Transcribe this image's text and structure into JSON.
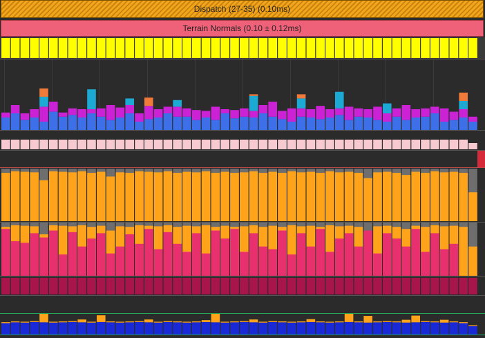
{
  "dispatch_label": "Dispatch (27-35) (0.10ms)",
  "terrain_label": "Terrain Normals (0.10 ± 0.12ms)",
  "colors": {
    "background": "#2b2b2b",
    "yellow": "#ffff00",
    "blue": "#3d6fe8",
    "magenta": "#cc22d6",
    "cyan": "#1ca9d4",
    "orange_top": "#f07a3a",
    "pink": "#f7c9d0",
    "red": "#d42a3a",
    "gold": "#ffa31a",
    "gray": "#6e6e6e",
    "rose": "#e8306f",
    "maroon": "#a8154a",
    "deep_blue": "#1a29d6",
    "green_line": "#1fa65a"
  },
  "frame_count": 50,
  "frames": {
    "stack_blue": [
      1.5,
      2.0,
      1.2,
      1.5,
      1.0,
      2.2,
      1.6,
      1.8,
      1.5,
      2.0,
      1.6,
      1.2,
      1.5,
      2.0,
      1.0,
      1.3,
      1.5,
      2.0,
      1.6,
      1.6,
      1.2,
      1.5,
      1.2,
      2.0,
      1.4,
      1.6,
      1.5,
      2.0,
      1.6,
      1.3,
      1.0,
      1.6,
      1.5,
      1.3,
      1.5,
      1.8,
      1.2,
      1.6,
      1.5,
      1.2,
      1.0,
      1.6,
      1.2,
      1.5,
      1.6,
      2.0,
      1.0,
      1.2,
      1.5,
      1.0
    ],
    "stack_magenta": [
      0.6,
      1.0,
      0.8,
      1.0,
      1.8,
      1.2,
      0.5,
      0.8,
      1.0,
      0.5,
      1.0,
      1.8,
      1.2,
      1.0,
      1.0,
      1.6,
      1.0,
      0.8,
      1.2,
      1.0,
      1.2,
      0.8,
      1.6,
      0.5,
      1.0,
      1.0,
      0.8,
      1.0,
      1.8,
      1.0,
      1.6,
      1.0,
      1.0,
      1.6,
      1.0,
      0.8,
      1.6,
      1.0,
      1.0,
      1.6,
      1.0,
      1.0,
      1.8,
      1.0,
      1.0,
      0.8,
      1.6,
      1.0,
      1.0,
      0.6
    ],
    "stack_cyan": [
      0.0,
      0.0,
      0.0,
      0.0,
      1.2,
      0.0,
      0.0,
      0.0,
      0.0,
      2.4,
      0.0,
      0.0,
      0.0,
      0.8,
      0.0,
      0.0,
      0.0,
      0.0,
      0.8,
      0.0,
      0.0,
      0.0,
      0.0,
      0.0,
      0.0,
      0.0,
      1.8,
      0.0,
      0.0,
      0.0,
      0.0,
      1.2,
      0.0,
      0.0,
      0.0,
      2.0,
      0.0,
      0.0,
      0.0,
      0.0,
      1.2,
      0.0,
      0.0,
      0.0,
      0.0,
      0.0,
      0.0,
      0.0,
      1.0,
      0.0
    ],
    "stack_orange": [
      0.0,
      0.0,
      0.0,
      0.0,
      1.0,
      0.0,
      0.0,
      0.0,
      0.0,
      0.0,
      0.0,
      0.0,
      0.0,
      0.0,
      0.0,
      1.0,
      0.0,
      0.0,
      0.0,
      0.0,
      0.0,
      0.0,
      0.0,
      0.0,
      0.0,
      0.0,
      0.2,
      0.0,
      0.0,
      0.0,
      0.0,
      0.5,
      0.0,
      0.0,
      0.0,
      0.0,
      0.0,
      0.0,
      0.0,
      0.0,
      0.0,
      0.0,
      0.0,
      0.0,
      0.0,
      0.0,
      0.0,
      0.0,
      1.0,
      0.0
    ],
    "gold_level": [
      0.92,
      0.95,
      0.94,
      0.93,
      0.78,
      0.95,
      0.94,
      0.93,
      0.95,
      0.92,
      0.94,
      0.85,
      0.93,
      0.92,
      0.95,
      0.94,
      0.93,
      0.95,
      0.92,
      0.94,
      0.93,
      0.95,
      0.92,
      0.94,
      0.92,
      0.93,
      0.95,
      0.92,
      0.94,
      0.92,
      0.95,
      0.93,
      0.94,
      0.92,
      0.95,
      0.93,
      0.94,
      0.92,
      0.82,
      0.93,
      0.94,
      0.92,
      0.88,
      0.94,
      0.92,
      0.95,
      0.93,
      0.94,
      0.92,
      0.55
    ],
    "rose_level": [
      0.88,
      0.65,
      0.62,
      0.8,
      0.72,
      0.85,
      0.4,
      0.82,
      0.55,
      0.7,
      0.8,
      0.42,
      0.55,
      0.78,
      0.6,
      0.88,
      0.5,
      0.82,
      0.6,
      0.45,
      0.8,
      0.42,
      0.85,
      0.7,
      0.88,
      0.45,
      0.8,
      0.55,
      0.5,
      0.85,
      0.4,
      0.8,
      0.55,
      0.88,
      0.45,
      0.7,
      0.8,
      0.55,
      0.85,
      0.42,
      0.8,
      0.7,
      0.55,
      0.88,
      0.45,
      0.8,
      0.5,
      0.6,
      0.0,
      0.0
    ],
    "deep_blue_level": [
      0.75,
      0.8,
      0.78,
      0.82,
      0.8,
      0.78,
      0.8,
      0.82,
      0.8,
      0.78,
      0.82,
      0.8,
      0.78,
      0.8,
      0.82,
      0.8,
      0.78,
      0.82,
      0.8,
      0.78,
      0.8,
      0.82,
      0.8,
      0.78,
      0.8,
      0.82,
      0.8,
      0.78,
      0.82,
      0.8,
      0.78,
      0.8,
      0.82,
      0.8,
      0.78,
      0.8,
      0.82,
      0.8,
      0.78,
      0.8,
      0.82,
      0.8,
      0.78,
      0.8,
      0.82,
      0.8,
      0.78,
      0.8,
      0.75,
      0.55
    ],
    "gold_spike": [
      0.1,
      0.1,
      0.1,
      0.1,
      0.9,
      0.1,
      0.1,
      0.1,
      0.3,
      0.1,
      0.7,
      0.1,
      0.1,
      0.1,
      0.1,
      0.3,
      0.1,
      0.1,
      0.1,
      0.1,
      0.1,
      0.2,
      0.9,
      0.1,
      0.1,
      0.1,
      0.3,
      0.1,
      0.1,
      0.1,
      0.1,
      0.1,
      0.3,
      0.1,
      0.1,
      0.1,
      0.9,
      0.1,
      0.7,
      0.1,
      0.1,
      0.1,
      0.3,
      0.7,
      0.1,
      0.1,
      0.3,
      0.1,
      0.1,
      0.1
    ]
  }
}
